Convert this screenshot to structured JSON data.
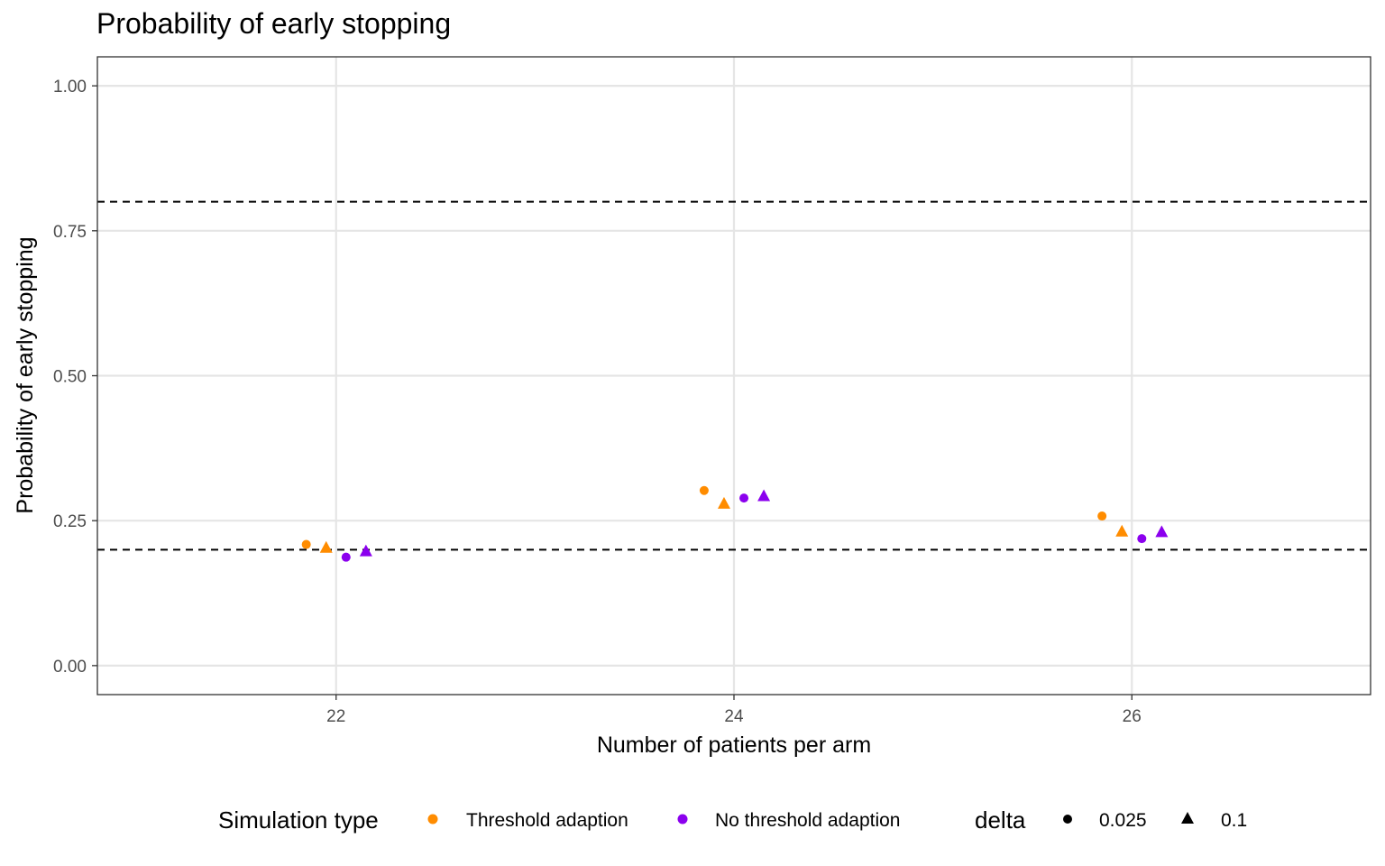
{
  "chart_data": {
    "type": "scatter",
    "title": "Probability of early stopping",
    "xlabel": "Number of patients per arm",
    "ylabel": "Probability of early stopping",
    "xlim": [
      20.8,
      27.2
    ],
    "ylim": [
      -0.05,
      1.05
    ],
    "x_ticks": [
      22,
      24,
      26
    ],
    "y_ticks": [
      0.0,
      0.25,
      0.5,
      0.75,
      1.0
    ],
    "x_tick_labels": [
      "22",
      "24",
      "26"
    ],
    "y_tick_labels": [
      "0.00",
      "0.25",
      "0.50",
      "0.75",
      "1.00"
    ],
    "reference_lines": [
      0.2,
      0.8
    ],
    "grid": true,
    "legend_position": "bottom",
    "legend": {
      "color_title": "Simulation type",
      "shape_title": "delta",
      "color_entries": [
        {
          "label": "Threshold adaption",
          "color": "#FF8C00"
        },
        {
          "label": "No threshold adaption",
          "color": "#8B00EE"
        }
      ],
      "shape_entries": [
        {
          "label": "0.025",
          "shape": "circle"
        },
        {
          "label": "0.1",
          "shape": "triangle"
        }
      ]
    },
    "series": [
      {
        "name": "Threshold adaption",
        "delta": "0.025",
        "color": "#FF8C00",
        "shape": "circle",
        "x": [
          22,
          24,
          26
        ],
        "y": [
          0.209,
          0.302,
          0.258
        ]
      },
      {
        "name": "Threshold adaption",
        "delta": "0.1",
        "color": "#FF8C00",
        "shape": "triangle",
        "x": [
          22,
          24,
          26
        ],
        "y": [
          0.204,
          0.28,
          0.232
        ]
      },
      {
        "name": "No threshold adaption",
        "delta": "0.025",
        "color": "#8B00EE",
        "shape": "circle",
        "x": [
          22,
          24,
          26
        ],
        "y": [
          0.187,
          0.289,
          0.219
        ]
      },
      {
        "name": "No threshold adaption",
        "delta": "0.1",
        "color": "#8B00EE",
        "shape": "triangle",
        "x": [
          22,
          24,
          26
        ],
        "y": [
          0.198,
          0.293,
          0.231
        ]
      }
    ]
  }
}
